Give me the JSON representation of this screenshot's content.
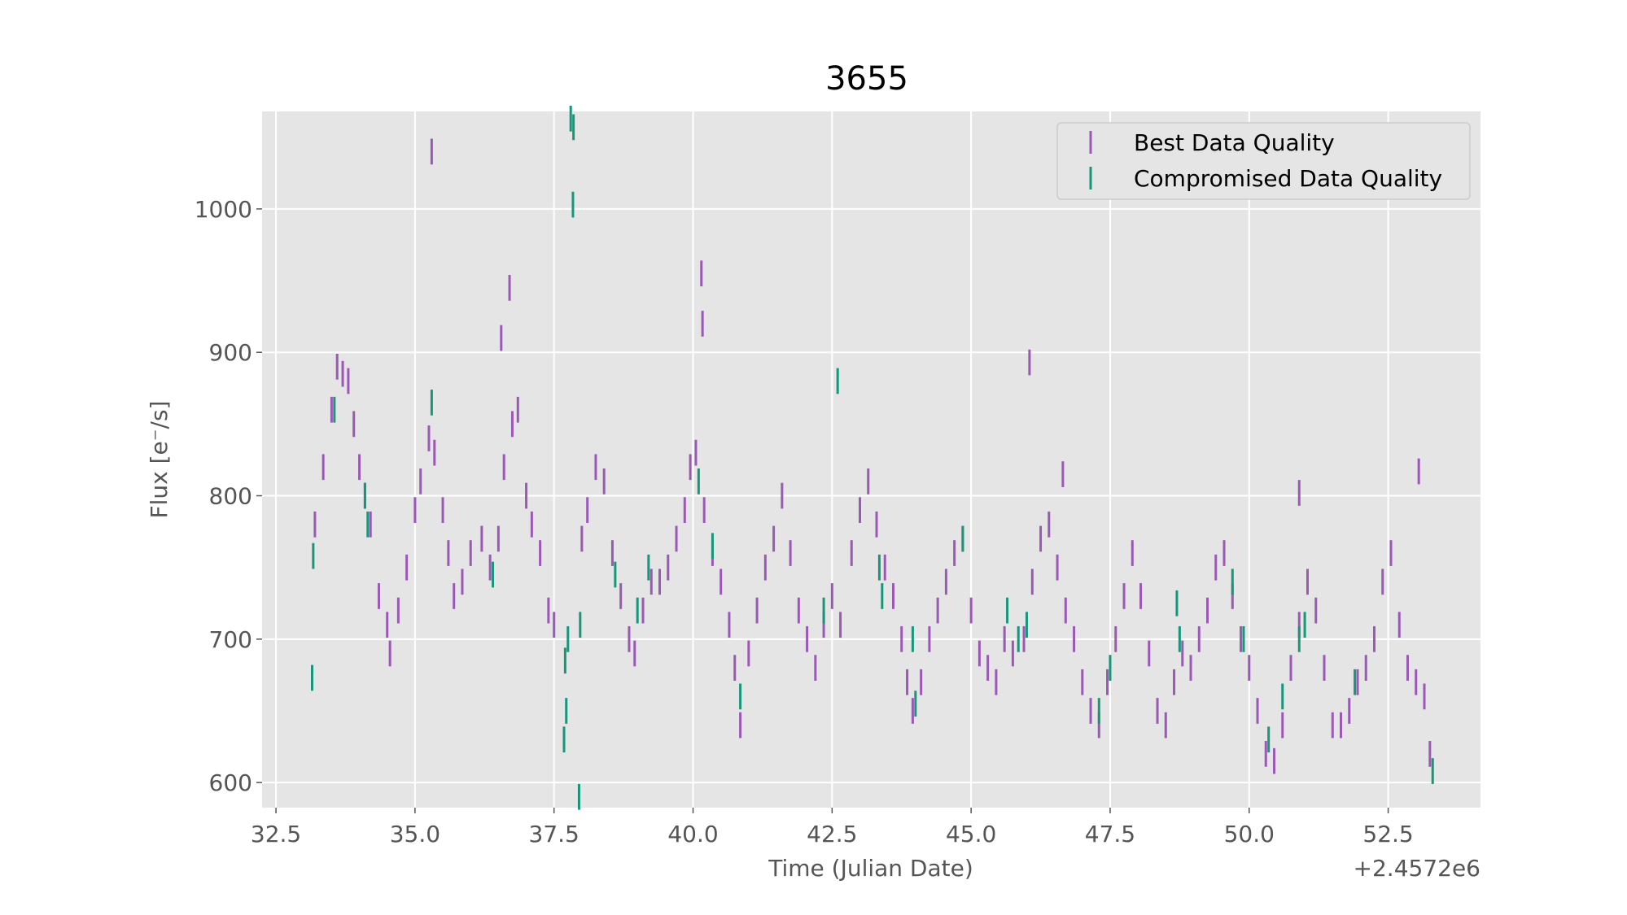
{
  "chart_data": {
    "type": "errorbar",
    "title": "3655",
    "x_label": "Time (Julian Date)",
    "y_label": "Flux [e⁻/s]",
    "x_offset_label": "+2.4572e6",
    "xlim": [
      32.25,
      54.16
    ],
    "ylim": [
      582.5,
      1068
    ],
    "xticks": [
      32.5,
      {
        "value": 35,
        "label": "35.0"
      },
      37.5,
      {
        "value": 40,
        "label": "40.0"
      },
      42.5,
      {
        "value": 45,
        "label": "45.0"
      },
      47.5,
      {
        "value": 50,
        "label": "50.0"
      },
      52.5
    ],
    "yticks": [
      600,
      700,
      800,
      900,
      1000
    ],
    "grid": true,
    "legend": "upper right",
    "series": [
      {
        "name": "Best Data Quality",
        "color": "#9b59b6",
        "error": 9,
        "x": [
          33.2,
          33.35,
          33.5,
          33.6,
          33.7,
          33.8,
          33.9,
          34.0,
          34.1,
          34.2,
          34.35,
          34.5,
          34.55,
          34.7,
          34.85,
          35.0,
          35.1,
          35.25,
          35.35,
          35.5,
          35.6,
          35.7,
          35.85,
          36.0,
          36.2,
          36.35,
          36.5,
          36.6,
          36.75,
          36.85,
          37.0,
          37.1,
          37.25,
          37.4,
          37.5,
          38.0,
          38.1,
          38.25,
          38.4,
          38.55,
          38.7,
          38.85,
          38.95,
          39.1,
          39.25,
          39.4,
          39.55,
          39.7,
          39.85,
          39.95,
          40.05,
          40.2,
          40.35,
          40.5,
          40.65,
          40.75,
          40.85,
          41.0,
          41.15,
          41.3,
          41.45,
          41.6,
          41.75,
          41.9,
          42.05,
          42.2,
          42.35,
          42.5,
          42.65,
          42.85,
          43.0,
          43.15,
          43.3,
          43.45,
          43.6,
          43.75,
          43.85,
          43.95,
          44.1,
          44.25,
          44.4,
          44.55,
          44.7,
          44.85,
          45.0,
          45.15,
          45.3,
          45.45,
          45.6,
          45.75,
          45.95,
          46.1,
          46.25,
          46.4,
          46.55,
          46.7,
          46.85,
          47.0,
          47.15,
          47.3,
          47.45,
          47.6,
          47.75,
          47.9,
          48.05,
          48.2,
          48.35,
          48.5,
          48.65,
          48.8,
          48.95,
          49.1,
          49.25,
          49.4,
          49.55,
          49.7,
          49.85,
          50.0,
          50.15,
          50.3,
          50.45,
          50.6,
          50.75,
          50.9,
          51.05,
          51.2,
          51.35,
          51.5,
          51.65,
          51.8,
          51.95,
          52.1,
          52.25,
          52.4,
          52.55,
          52.7,
          52.85,
          53.0,
          53.15,
          53.25,
          35.3,
          36.55,
          36.7,
          40.15,
          40.17,
          46.05,
          46.65,
          50.9,
          53.05
        ],
        "values": [
          780,
          820,
          860,
          890,
          885,
          880,
          850,
          820,
          800,
          780,
          730,
          710,
          690,
          720,
          750,
          790,
          810,
          840,
          830,
          790,
          760,
          730,
          740,
          760,
          770,
          750,
          770,
          820,
          850,
          860,
          800,
          780,
          760,
          720,
          710,
          770,
          790,
          820,
          810,
          760,
          730,
          700,
          690,
          720,
          740,
          740,
          750,
          770,
          790,
          820,
          830,
          790,
          760,
          740,
          710,
          680,
          640,
          690,
          720,
          750,
          770,
          800,
          760,
          720,
          700,
          680,
          710,
          730,
          710,
          760,
          790,
          810,
          780,
          750,
          730,
          700,
          670,
          650,
          670,
          700,
          720,
          740,
          760,
          770,
          720,
          690,
          680,
          670,
          700,
          690,
          700,
          740,
          770,
          780,
          750,
          720,
          700,
          670,
          650,
          640,
          670,
          700,
          730,
          760,
          730,
          690,
          650,
          640,
          670,
          690,
          680,
          700,
          720,
          750,
          760,
          730,
          700,
          680,
          650,
          620,
          615,
          640,
          680,
          710,
          740,
          720,
          680,
          640,
          640,
          650,
          670,
          680,
          700,
          740,
          760,
          710,
          680,
          670,
          660,
          620,
          1040,
          910,
          945,
          955,
          920,
          893,
          815,
          802,
          817
        ]
      },
      {
        "name": "Compromised Data Quality",
        "color": "#17967a",
        "error": 9,
        "x": [
          33.15,
          33.17,
          33.55,
          34.1,
          34.15,
          35.3,
          36.4,
          37.7,
          37.75,
          37.68,
          37.72,
          37.8,
          37.85,
          37.84,
          37.95,
          37.97,
          38.6,
          39.0,
          39.2,
          40.1,
          40.35,
          40.85,
          42.35,
          42.6,
          43.35,
          43.4,
          43.95,
          44.0,
          44.85,
          45.65,
          45.85,
          46.0,
          47.3,
          47.5,
          48.7,
          48.75,
          49.7,
          49.9,
          50.35,
          50.6,
          50.9,
          51.0,
          51.9,
          53.3
        ],
        "values": [
          673,
          758,
          860,
          800,
          780,
          865,
          745,
          685,
          700,
          630,
          650,
          1063,
          1057,
          1003,
          590,
          710,
          745,
          720,
          750,
          810,
          765,
          660,
          720,
          880,
          750,
          730,
          700,
          655,
          770,
          720,
          700,
          710,
          650,
          680,
          725,
          700,
          740,
          700,
          630,
          660,
          700,
          710,
          670,
          608
        ]
      }
    ]
  }
}
